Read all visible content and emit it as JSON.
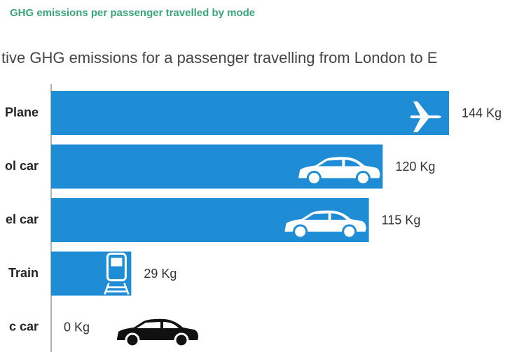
{
  "chart_data": {
    "type": "bar",
    "orientation": "horizontal",
    "subtitle": "GHG emissions per passenger travelled by mode",
    "title": "tive GHG emissions for a passenger travelling from London to E",
    "categories": [
      "Plane",
      "ol car",
      "el car",
      "Train",
      "c car"
    ],
    "values": [
      144,
      120,
      115,
      29,
      0
    ],
    "value_labels": [
      "144 Kg",
      "120 Kg",
      "115 Kg",
      "29 Kg",
      "0 Kg"
    ],
    "color": "#1f8dd6"
  }
}
